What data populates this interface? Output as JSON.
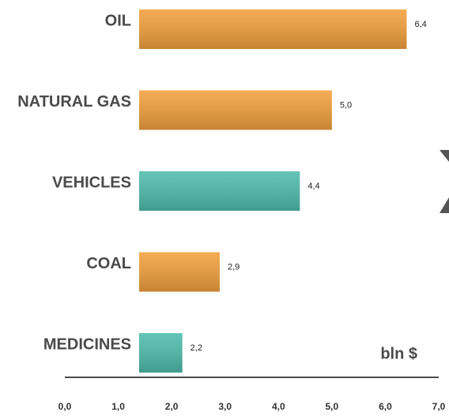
{
  "chart_data": {
    "type": "bar",
    "orientation": "horizontal",
    "categories": [
      "OIL",
      "NATURAL GAS",
      "VEHICLES",
      "COAL",
      "MEDICINES"
    ],
    "values": [
      6.4,
      5.0,
      4.4,
      2.9,
      2.2
    ],
    "value_labels": [
      "6,4",
      "5,0",
      "4,4",
      "2,9",
      "2,2"
    ],
    "colors": [
      "#f2a03d",
      "#f2a03d",
      "#4fbcad",
      "#f2a03d",
      "#4fbcad"
    ],
    "xlim": [
      0,
      7
    ],
    "xticks": [
      {
        "value": 0,
        "label": "0,0"
      },
      {
        "value": 1,
        "label": "1,0"
      },
      {
        "value": 2,
        "label": "2,0"
      },
      {
        "value": 3,
        "label": "3,0"
      },
      {
        "value": 4,
        "label": "4,0"
      },
      {
        "value": 5,
        "label": "5,0"
      },
      {
        "value": 6,
        "label": "6,0"
      },
      {
        "value": 7,
        "label": "7,0"
      }
    ],
    "xlabel": "bln $",
    "grid": false
  }
}
